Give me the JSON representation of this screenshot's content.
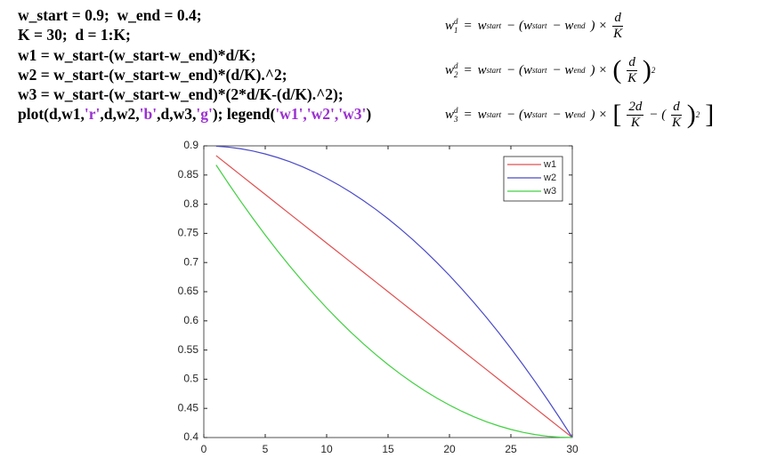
{
  "code_lines": [
    [
      {
        "text": "w_start = 0.9;  w_end = 0.4;"
      }
    ],
    [
      {
        "text": "K = 30;  d = 1:K;"
      }
    ],
    [
      {
        "text": "w1 = w_start-(w_start-w_end)*d/K;"
      }
    ],
    [
      {
        "text": "w2 = w_start-(w_start-w_end)*(d/K).^2;"
      }
    ],
    [
      {
        "text": "w3 = w_start-(w_start-w_end)*(2*d/K-(d/K).^2);"
      }
    ],
    [
      {
        "text": "plot(d,w1,"
      },
      {
        "text": "'r'",
        "string": true
      },
      {
        "text": ",d,w2,"
      },
      {
        "text": "'b'",
        "string": true
      },
      {
        "text": ",d,w3,"
      },
      {
        "text": "'g'",
        "string": true
      },
      {
        "text": "); legend("
      },
      {
        "text": "'w1','w2','w3'",
        "string": true
      },
      {
        "text": ")"
      }
    ]
  ],
  "formulas": [
    {
      "tokens": [
        {
          "text": "w",
          "sub": "1",
          "sup": "d"
        },
        {
          "text": "="
        },
        {
          "text": "w",
          "sub": "start"
        },
        {
          "text": "− (w",
          "sub": "start"
        },
        {
          "text": "− w",
          "sub": "end"
        },
        {
          "text": ") ×"
        },
        {
          "num": "d",
          "den": "K"
        }
      ]
    },
    {
      "tokens": [
        {
          "text": "w",
          "sub": "2",
          "sup": "d"
        },
        {
          "text": "="
        },
        {
          "text": "w",
          "sub": "start"
        },
        {
          "text": "− (w",
          "sub": "start"
        },
        {
          "text": "− w",
          "sub": "end"
        },
        {
          "text": ") ×"
        },
        {
          "text": "("
        },
        {
          "num": "d",
          "den": "K"
        },
        {
          "text": ")",
          "sup": "2"
        }
      ]
    },
    {
      "tokens": [
        {
          "text": "w",
          "sub": "3",
          "sup": "d"
        },
        {
          "text": "="
        },
        {
          "text": "w",
          "sub": "start"
        },
        {
          "text": "− (w",
          "sub": "start"
        },
        {
          "text": "− w",
          "sub": "end"
        },
        {
          "text": ") ×"
        },
        {
          "text": "["
        },
        {
          "num": "2d",
          "den": "K"
        },
        {
          "text": "− ("
        },
        {
          "num": "d",
          "den": "K"
        },
        {
          "text": ")",
          "sup": "2"
        },
        {
          "text": "]"
        }
      ]
    }
  ],
  "chart_data": {
    "type": "line",
    "x": [
      1,
      2,
      3,
      4,
      5,
      6,
      7,
      8,
      9,
      10,
      11,
      12,
      13,
      14,
      15,
      16,
      17,
      18,
      19,
      20,
      21,
      22,
      23,
      24,
      25,
      26,
      27,
      28,
      29,
      30
    ],
    "series": [
      {
        "name": "w1",
        "color": "#e05050",
        "values": [
          0.8833,
          0.8667,
          0.85,
          0.8333,
          0.8167,
          0.8,
          0.7833,
          0.7667,
          0.75,
          0.7333,
          0.7167,
          0.7,
          0.6833,
          0.6667,
          0.65,
          0.6333,
          0.6167,
          0.6,
          0.5833,
          0.5667,
          0.55,
          0.5333,
          0.5167,
          0.5,
          0.4833,
          0.4667,
          0.45,
          0.4333,
          0.4167,
          0.4
        ]
      },
      {
        "name": "w2",
        "color": "#4a4ac8",
        "values": [
          0.8994,
          0.8978,
          0.895,
          0.8911,
          0.8861,
          0.88,
          0.8728,
          0.8644,
          0.855,
          0.8444,
          0.8328,
          0.82,
          0.8061,
          0.7911,
          0.775,
          0.7578,
          0.7394,
          0.72,
          0.6994,
          0.6778,
          0.655,
          0.6311,
          0.6061,
          0.58,
          0.5528,
          0.5244,
          0.495,
          0.4644,
          0.4328,
          0.4
        ]
      },
      {
        "name": "w3",
        "color": "#40d040",
        "values": [
          0.8672,
          0.8356,
          0.805,
          0.7756,
          0.7472,
          0.72,
          0.6939,
          0.6689,
          0.645,
          0.6222,
          0.6006,
          0.58,
          0.5606,
          0.5422,
          0.525,
          0.5089,
          0.4939,
          0.48,
          0.4672,
          0.4556,
          0.445,
          0.4356,
          0.4272,
          0.42,
          0.4139,
          0.4089,
          0.405,
          0.4022,
          0.4006,
          0.4
        ]
      }
    ],
    "xlim": [
      0,
      30
    ],
    "xticks": [
      0,
      5,
      10,
      15,
      20,
      25,
      30
    ],
    "ylim": [
      0.4,
      0.9
    ],
    "yticks": [
      0.4,
      0.45,
      0.5,
      0.55,
      0.6,
      0.65,
      0.7,
      0.75,
      0.8,
      0.85,
      0.9
    ],
    "legend": "upper right",
    "grid": false
  }
}
